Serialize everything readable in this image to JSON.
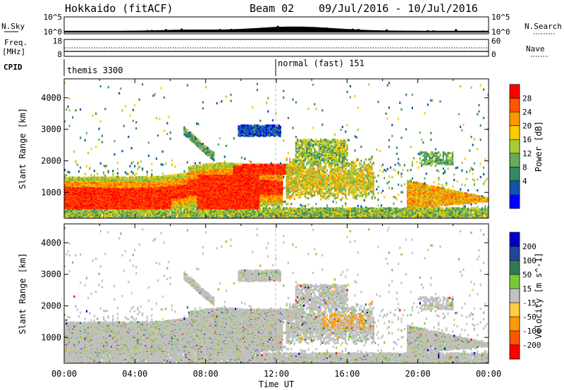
{
  "header": {
    "station": "Hokkaido (fitACF)",
    "beam": "Beam 02",
    "date_range": "09/Jul/2016 - 10/Jul/2016"
  },
  "top_panels": {
    "nsky_label": "N.Sky",
    "nsky_ticks": [
      "10^5",
      "10^0"
    ],
    "nsearch_label": "N.Search",
    "nsearch_ticks": [
      "10^5",
      "10^0"
    ],
    "freq_label": "Freq.",
    "freq_unit": "[MHz]",
    "freq_ticks": [
      "18",
      "8"
    ],
    "nave_label": "Nave",
    "nave_ticks": [
      "60",
      "0"
    ],
    "cpid_label": "CPID",
    "cpid_segments": [
      {
        "start_hour": 0,
        "label": "themis 3300"
      },
      {
        "start_hour": 12,
        "label": "normal (fast) 151"
      }
    ]
  },
  "power_colorbar": {
    "label": "Power [dB]",
    "ticks": [
      "28",
      "24",
      "20",
      "16",
      "12",
      "8",
      "4"
    ],
    "colors": [
      "#ff0000",
      "#ff5500",
      "#ff9900",
      "#ffcc00",
      "#aacc33",
      "#66aa55",
      "#338866",
      "#1155aa",
      "#0000ff"
    ]
  },
  "velocity_colorbar": {
    "label": "Velocity [m s^-1]",
    "ticks": [
      "200",
      "100",
      "50",
      "15",
      "-15",
      "-50",
      "-100",
      "-200"
    ],
    "colors": [
      "#0000cc",
      "#224499",
      "#337755",
      "#77cc33",
      "#c0c0c0",
      "#ffcc44",
      "#ff9900",
      "#ff5500",
      "#ff0000"
    ]
  },
  "chart_data": [
    {
      "type": "heatmap",
      "name": "power",
      "xlabel": "",
      "ylabel": "Slant Range [km]",
      "yticks": [
        1000,
        2000,
        3000,
        4000
      ],
      "xlim": [
        0,
        24
      ],
      "ylim": [
        180,
        4600
      ]
    },
    {
      "type": "heatmap",
      "name": "velocity",
      "xlabel": "Time UT",
      "ylabel": "Slant Range [km]",
      "xticks": [
        "00:00",
        "04:00",
        "08:00",
        "12:00",
        "16:00",
        "20:00",
        "00:00"
      ],
      "yticks": [
        1000,
        2000,
        3000,
        4000
      ],
      "xlim": [
        0,
        24
      ],
      "ylim": [
        180,
        4600
      ]
    }
  ]
}
